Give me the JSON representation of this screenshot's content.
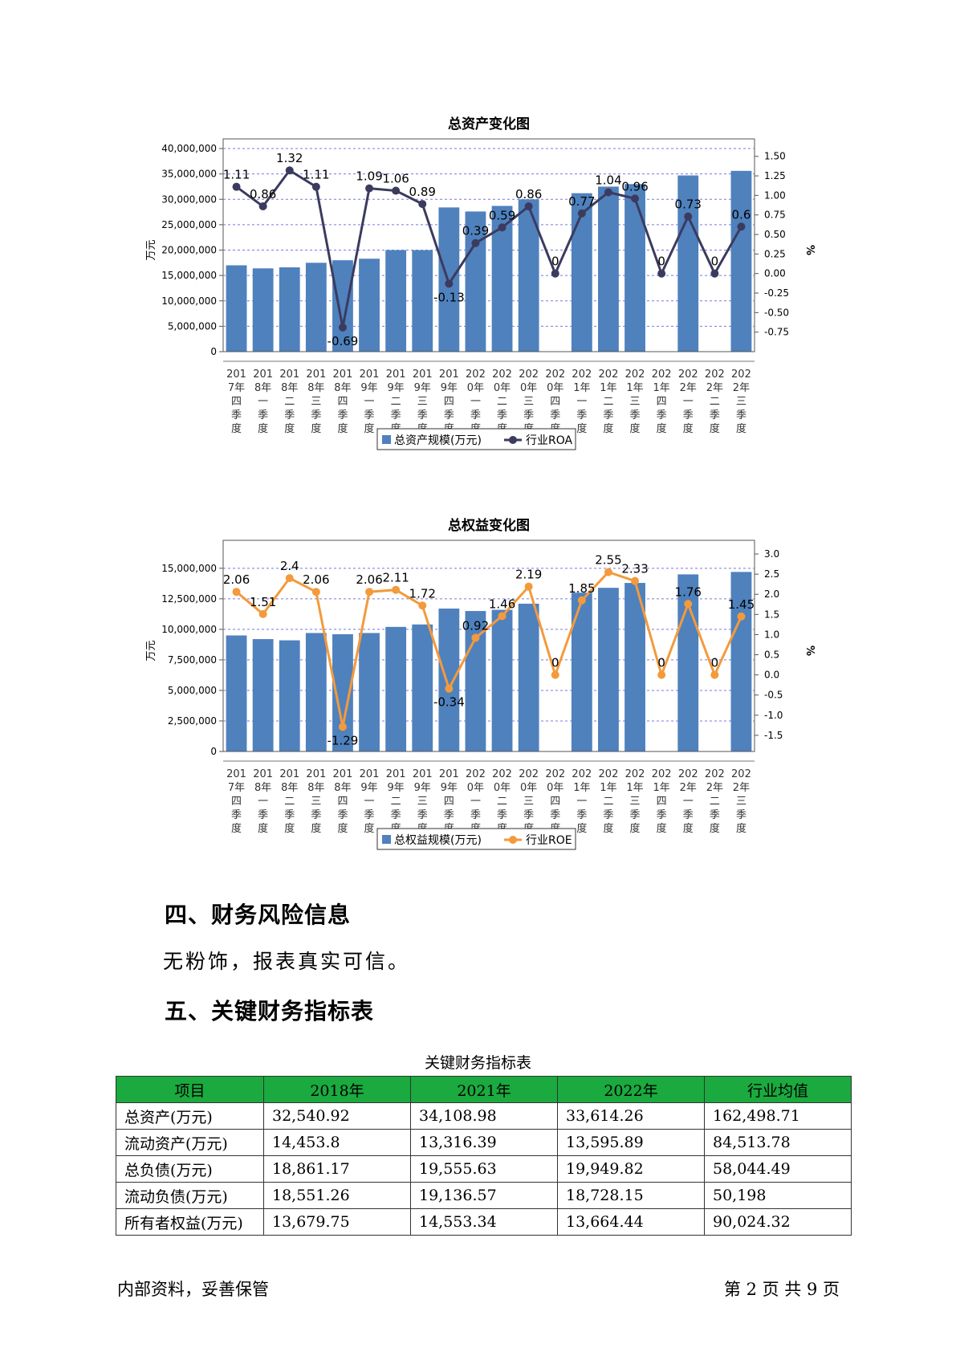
{
  "charts": [
    {
      "type": "bar",
      "title": "总资产变化图",
      "ylabel": "万元",
      "y2label": "%",
      "categories": [
        "2017年四季度",
        "2018年一季度",
        "2018年二季度",
        "2018年三季度",
        "2018年四季度",
        "2019年一季度",
        "2019年二季度",
        "2019年三季度",
        "2019年四季度",
        "2020年一季度",
        "2020年二季度",
        "2020年三季度",
        "2020年四季度",
        "2021年一季度",
        "2021年二季度",
        "2021年三季度",
        "2021年四季度",
        "2022年一季度",
        "2022年二季度",
        "2022年三季度"
      ],
      "series": [
        {
          "name": "总资产规模(万元)",
          "type": "bar",
          "color": "#4f81bd",
          "values": [
            17000000,
            16400000,
            16600000,
            17500000,
            18000000,
            18300000,
            20000000,
            20000000,
            28400000,
            27600000,
            28700000,
            30000000,
            0,
            31200000,
            32500000,
            33000000,
            0,
            34700000,
            0,
            35600000
          ]
        },
        {
          "name": "行业ROA",
          "type": "line",
          "color": "#3b3b5f",
          "values": [
            1.11,
            0.86,
            1.32,
            1.11,
            -0.69,
            1.09,
            1.06,
            0.89,
            -0.13,
            0.39,
            0.59,
            0.86,
            0,
            0.77,
            1.04,
            0.96,
            0,
            0.73,
            0,
            0.6
          ]
        }
      ],
      "labels": [
        "1.11",
        "0.86",
        "1.32",
        "1.11",
        "-0.69",
        "1.09",
        "1.06",
        "0.89",
        "-0.13",
        "0.39",
        "0.59",
        "0.86",
        "0",
        "0.77",
        "1.04",
        "0.96",
        "0",
        "0.73",
        "0",
        "0.6"
      ],
      "ylim": [
        0,
        40000000
      ],
      "y2lim": [
        -1,
        1.6
      ],
      "yticks": [
        "0",
        "5,000,000",
        "10,000,000",
        "15,000,000",
        "20,000,000",
        "25,000,000",
        "30,000,000",
        "35,000,000",
        "40,000,000"
      ],
      "y2ticks": [
        "-0.75",
        "-0.50",
        "-0.25",
        "0.00",
        "0.25",
        "0.50",
        "0.75",
        "1.00",
        "1.25",
        "1.50"
      ],
      "legend_position": "bottom"
    },
    {
      "type": "bar",
      "title": "总权益变化图",
      "ylabel": "万元",
      "y2label": "%",
      "categories": [
        "2017年四季度",
        "2018年一季度",
        "2018年二季度",
        "2018年三季度",
        "2018年四季度",
        "2019年一季度",
        "2019年二季度",
        "2019年三季度",
        "2019年四季度",
        "2020年一季度",
        "2020年二季度",
        "2020年三季度",
        "2020年四季度",
        "2021年一季度",
        "2021年二季度",
        "2021年三季度",
        "2021年四季度",
        "2022年一季度",
        "2022年二季度",
        "2022年三季度"
      ],
      "series": [
        {
          "name": "总权益规模(万元)",
          "type": "bar",
          "color": "#4f81bd",
          "values": [
            9500000,
            9200000,
            9100000,
            9700000,
            9600000,
            9700000,
            10200000,
            10400000,
            11700000,
            11500000,
            11600000,
            12100000,
            0,
            13000000,
            13400000,
            13800000,
            0,
            14500000,
            0,
            14700000
          ]
        },
        {
          "name": "行业ROE",
          "type": "line",
          "color": "#f39a3c",
          "values": [
            2.06,
            1.51,
            2.4,
            2.06,
            -1.29,
            2.06,
            2.11,
            1.72,
            -0.34,
            0.92,
            1.46,
            2.19,
            0,
            1.85,
            2.55,
            2.33,
            0,
            1.76,
            0,
            1.45
          ]
        }
      ],
      "labels": [
        "2.06",
        "1.51",
        "2.4",
        "2.06",
        "-1.29",
        "2.06",
        "2.11",
        "1.72",
        "-0.34",
        "0.92",
        "1.46",
        "2.19",
        "0",
        "1.85",
        "2.55",
        "2.33",
        "0",
        "1.76",
        "0",
        "1.45"
      ],
      "ylim": [
        0,
        16500000
      ],
      "y2lim": [
        -1.9,
        3.1
      ],
      "yticks": [
        "0",
        "2,500,000",
        "5,000,000",
        "7,500,000",
        "10,000,000",
        "12,500,000",
        "15,000,000"
      ],
      "y2ticks": [
        "-1.5",
        "-1.0",
        "-0.5",
        "0.0",
        "0.5",
        "1.0",
        "1.5",
        "2.0",
        "2.5",
        "3.0"
      ],
      "legend_position": "bottom"
    }
  ],
  "section4": {
    "heading": "四、财务风险信息",
    "text": "无粉饰，报表真实可信。"
  },
  "section5": {
    "heading": "五、关键财务指标表"
  },
  "table": {
    "caption": "关键财务指标表",
    "header_color": "#1aaa3f",
    "headers": [
      "项目",
      "2018年",
      "2021年",
      "2022年",
      "行业均值"
    ],
    "rows": [
      [
        "总资产(万元)",
        "32,540.92",
        "34,108.98",
        "33,614.26",
        "162,498.71"
      ],
      [
        "流动资产(万元)",
        "14,453.8",
        "13,316.39",
        "13,595.89",
        "84,513.78"
      ],
      [
        "总负债(万元)",
        "18,861.17",
        "19,555.63",
        "19,949.82",
        "58,044.49"
      ],
      [
        "流动负债(万元)",
        "18,551.26",
        "19,136.57",
        "18,728.15",
        "50,198"
      ],
      [
        "所有者权益(万元)",
        "13,679.75",
        "14,553.34",
        "13,664.44",
        "90,024.32"
      ]
    ]
  },
  "footer": {
    "left": "内部资料，妥善保管",
    "right": "第 2 页  共 9 页"
  }
}
